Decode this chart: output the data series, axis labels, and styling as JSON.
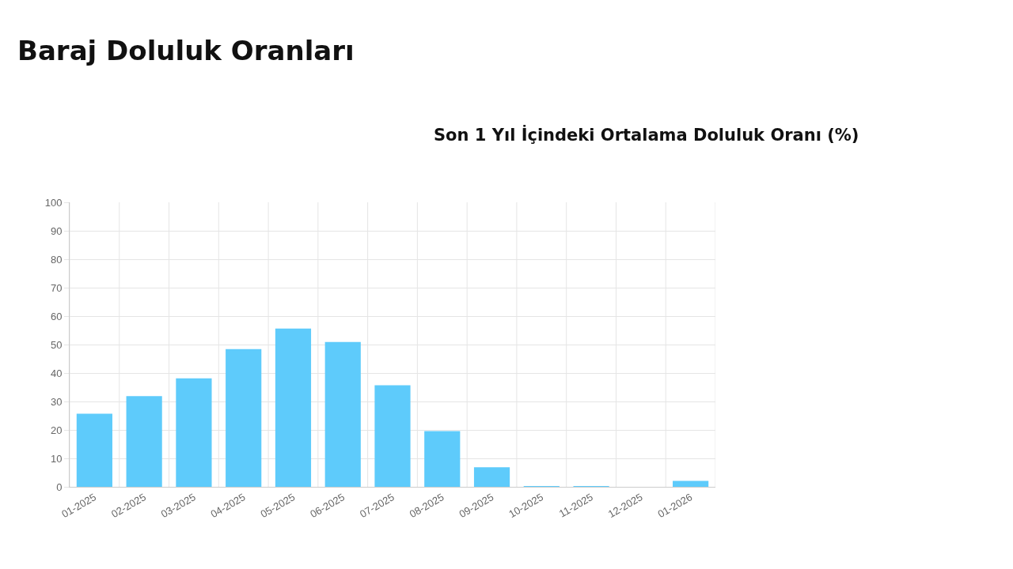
{
  "chart_data": {
    "type": "bar",
    "title": "Baraj Doluluk Oranları",
    "subtitle": "Son 1 Yıl İçindeki Ortalama Doluluk Oranı (%)",
    "categories": [
      "01-2025",
      "02-2025",
      "03-2025",
      "04-2025",
      "05-2025",
      "06-2025",
      "07-2025",
      "08-2025",
      "09-2025",
      "10-2025",
      "11-2025",
      "12-2025",
      "01-2026"
    ],
    "values": [
      25.7,
      31.9,
      38.1,
      48.4,
      55.6,
      50.9,
      35.7,
      19.6,
      6.9,
      0.2,
      0.2,
      0,
      2.1
    ],
    "color": "#5ecbfb",
    "ylim": [
      0,
      100
    ],
    "yticks": [
      0,
      10,
      20,
      30,
      40,
      50,
      60,
      70,
      80,
      90,
      100
    ],
    "grid": true
  }
}
